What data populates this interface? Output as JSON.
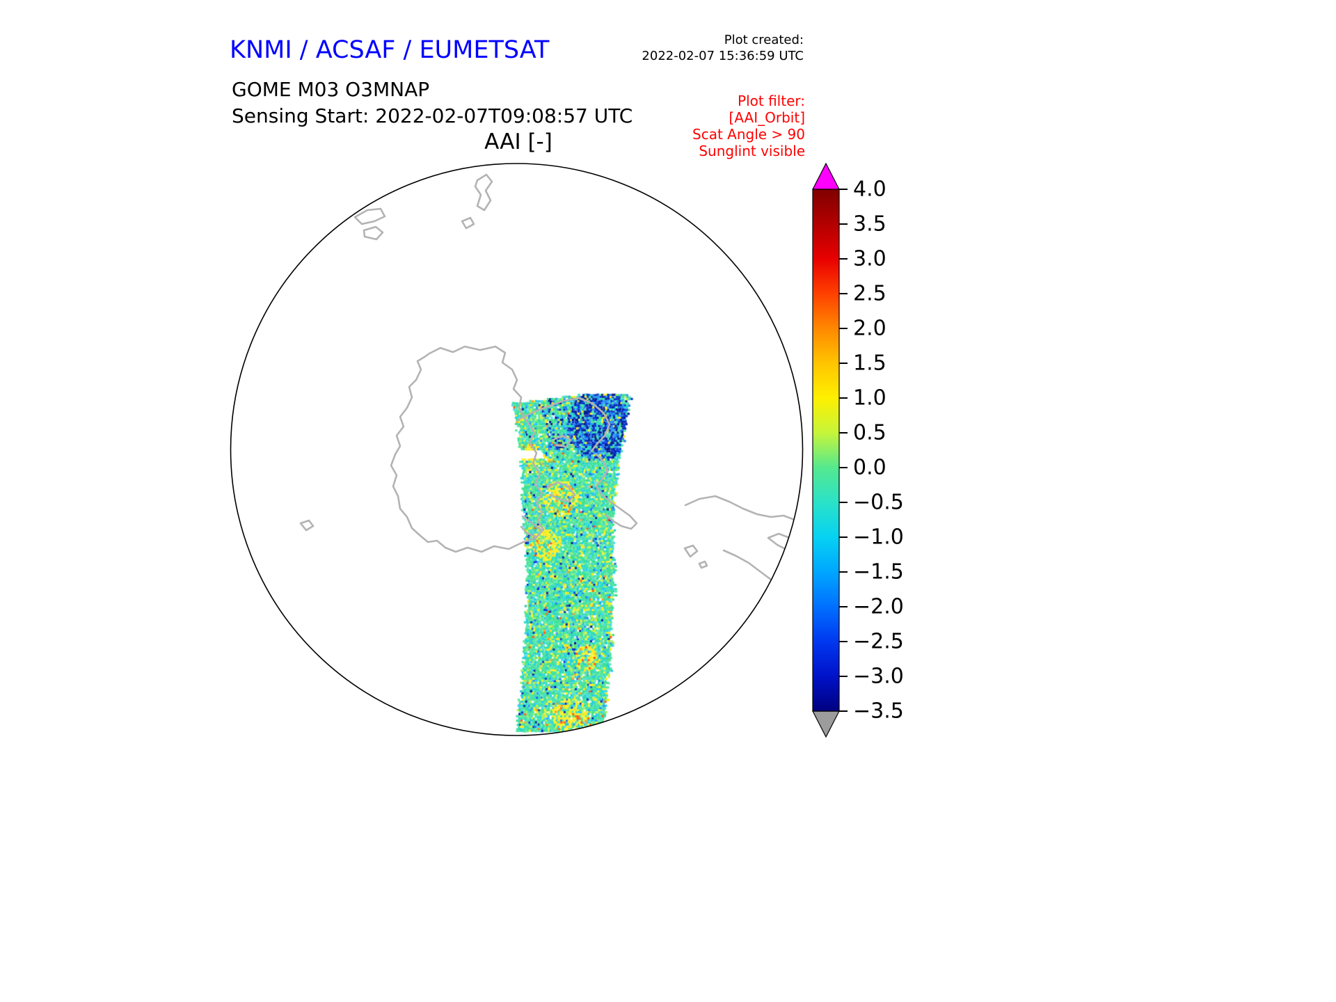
{
  "header": {
    "agency_title": "KNMI / ACSAF / EUMETSAT",
    "agency_title_color": "#0000ff",
    "plot_created_label": "Plot created:",
    "plot_created_value": "2022-02-07 15:36:59 UTC",
    "product_line": "GOME M03 O3MNAP",
    "sensing_line": "Sensing Start: 2022-02-07T09:08:57 UTC"
  },
  "plot_filter": {
    "color": "#ff0000",
    "lines": [
      "Plot filter:",
      "[AAI_Orbit]",
      "Scat Angle > 90",
      "Sunglint visible"
    ]
  },
  "map": {
    "title": "AAI [-]",
    "coast_color": "#b3b3b3",
    "outline_color": "#000000"
  },
  "chart_data": {
    "type": "heatmap",
    "title": "AAI [-]",
    "description": "Absorbing Aerosol Index (AAI) satellite swath from GOME-2 on Metop (M03), O3MNAP product, plotted on a circular polar stereographic projection with gray coastlines. One roughly north-south orbit swath of data is shown, mostly green/cyan values near 0, with yellow streaks near +0.5 to +1 and a dark blue patch (about -2 to -3.5) near the top of the swath.",
    "sensing_start": "2022-02-07T09:08:57 UTC",
    "value_range": [
      -3.5,
      4.0
    ],
    "colorbar": {
      "orientation": "vertical",
      "tick_values": [
        4.0,
        3.5,
        3.0,
        2.5,
        2.0,
        1.5,
        1.0,
        0.5,
        0.0,
        -0.5,
        -1.0,
        -1.5,
        -2.0,
        -2.5,
        -3.0,
        -3.5
      ],
      "tick_labels": [
        "4.0",
        "3.5",
        "3.0",
        "2.5",
        "2.0",
        "1.5",
        "1.0",
        "0.5",
        "0.0",
        "−0.5",
        "−1.0",
        "−1.5",
        "−2.0",
        "−2.5",
        "−3.0",
        "−3.5"
      ],
      "over_arrow_color": "#ff00ff",
      "under_arrow_color": "#9c9c9c",
      "gradient_stops": [
        {
          "v": 4.0,
          "c": "#800000"
        },
        {
          "v": 3.5,
          "c": "#b30000"
        },
        {
          "v": 3.0,
          "c": "#e80000"
        },
        {
          "v": 2.5,
          "c": "#ff4000"
        },
        {
          "v": 2.0,
          "c": "#ff8800"
        },
        {
          "v": 1.5,
          "c": "#ffc400"
        },
        {
          "v": 1.0,
          "c": "#fef000"
        },
        {
          "v": 0.5,
          "c": "#c6f53a"
        },
        {
          "v": 0.0,
          "c": "#55e88f"
        },
        {
          "v": -0.5,
          "c": "#2ae2c8"
        },
        {
          "v": -1.0,
          "c": "#06d2f2"
        },
        {
          "v": -1.5,
          "c": "#00a6ff"
        },
        {
          "v": -2.0,
          "c": "#0070ff"
        },
        {
          "v": -2.5,
          "c": "#0038f0"
        },
        {
          "v": -3.0,
          "c": "#0012c8"
        },
        {
          "v": -3.5,
          "c": "#000080"
        }
      ]
    },
    "swath_palette": {
      "greens": [
        "#3be18c",
        "#52e89b",
        "#49df93",
        "#60e9a8"
      ],
      "teals": [
        "#2fdec0",
        "#1ed2dc",
        "#35e0b0"
      ],
      "cyans": [
        "#27c6ee",
        "#45d9ec"
      ],
      "yellow_greens": [
        "#9aef5e",
        "#c3f23c"
      ],
      "yellows": [
        "#f4f32a",
        "#ffe818"
      ],
      "blues": [
        "#1f7cf0",
        "#2a9af5"
      ],
      "deep_blues": [
        "#0a2ab0",
        "#0538d8",
        "#021a90"
      ],
      "oranges": [
        "#ff9c1e",
        "#ff5a10"
      ]
    }
  }
}
